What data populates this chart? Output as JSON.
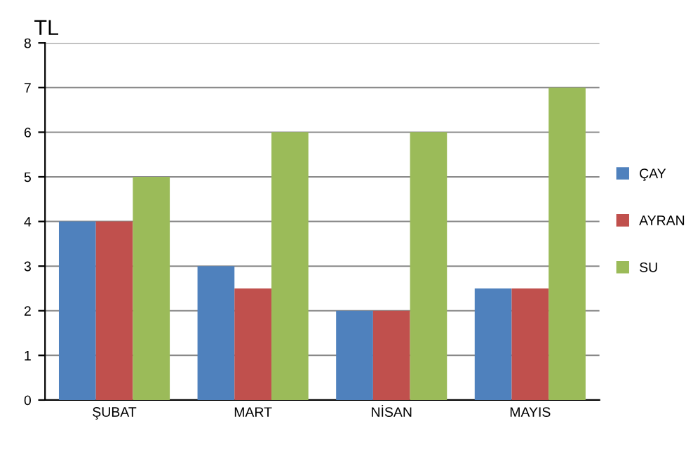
{
  "chart_data": {
    "type": "bar",
    "ylabel": "TL",
    "categories": [
      "ŞUBAT",
      "MART",
      "NİSAN",
      "MAYIS"
    ],
    "series": [
      {
        "name": "ÇAY",
        "color": "#4f81bd",
        "values": [
          4,
          3,
          2,
          2.5
        ]
      },
      {
        "name": "AYRAN",
        "color": "#c0504d",
        "values": [
          4,
          2.5,
          2,
          2.5
        ]
      },
      {
        "name": "SU",
        "color": "#9bbb59",
        "values": [
          5,
          6,
          6,
          7
        ]
      }
    ],
    "ylim": [
      0,
      8
    ],
    "yticks": [
      0,
      1,
      2,
      3,
      4,
      5,
      6,
      7,
      8
    ],
    "grid": "y",
    "legend": "right"
  }
}
